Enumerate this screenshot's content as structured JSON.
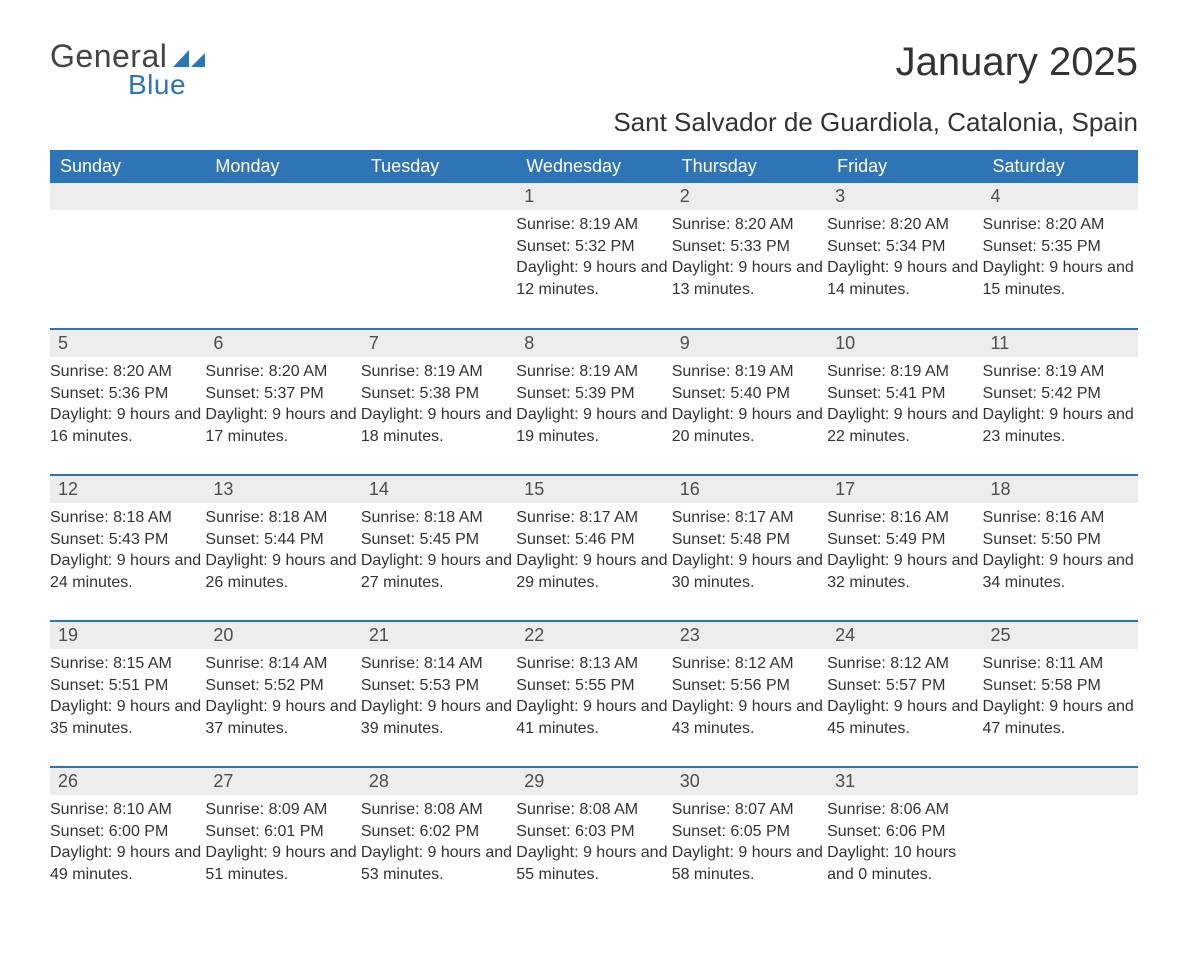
{
  "brand": {
    "general": "General",
    "blue": "Blue",
    "logo_colors": {
      "general": "#444444",
      "blue": "#2e75b6",
      "icon": "#2e75b6"
    }
  },
  "title": "January 2025",
  "subtitle": "Sant Salvador de Guardiola, Catalonia, Spain",
  "colors": {
    "header_bg": "#2f75b5",
    "header_text": "#ffffff",
    "daynum_bg": "#ededed",
    "week_divider": "#2f75b5",
    "body_text": "#333333"
  },
  "font_sizes": {
    "title": 40,
    "subtitle": 26,
    "weekday_header": 18,
    "day_number": 18,
    "day_body": 16
  },
  "weekdays": [
    "Sunday",
    "Monday",
    "Tuesday",
    "Wednesday",
    "Thursday",
    "Friday",
    "Saturday"
  ],
  "labels": {
    "sunrise": "Sunrise: ",
    "sunset": "Sunset: ",
    "daylight_prefix": "Daylight: ",
    "and": " and ",
    "minutes_suffix": " minutes."
  },
  "weeks": [
    [
      null,
      null,
      null,
      {
        "n": "1",
        "sunrise": "8:19 AM",
        "sunset": "5:32 PM",
        "dl_h": "9 hours",
        "dl_m": "12"
      },
      {
        "n": "2",
        "sunrise": "8:20 AM",
        "sunset": "5:33 PM",
        "dl_h": "9 hours",
        "dl_m": "13"
      },
      {
        "n": "3",
        "sunrise": "8:20 AM",
        "sunset": "5:34 PM",
        "dl_h": "9 hours",
        "dl_m": "14"
      },
      {
        "n": "4",
        "sunrise": "8:20 AM",
        "sunset": "5:35 PM",
        "dl_h": "9 hours",
        "dl_m": "15"
      }
    ],
    [
      {
        "n": "5",
        "sunrise": "8:20 AM",
        "sunset": "5:36 PM",
        "dl_h": "9 hours",
        "dl_m": "16"
      },
      {
        "n": "6",
        "sunrise": "8:20 AM",
        "sunset": "5:37 PM",
        "dl_h": "9 hours",
        "dl_m": "17"
      },
      {
        "n": "7",
        "sunrise": "8:19 AM",
        "sunset": "5:38 PM",
        "dl_h": "9 hours",
        "dl_m": "18"
      },
      {
        "n": "8",
        "sunrise": "8:19 AM",
        "sunset": "5:39 PM",
        "dl_h": "9 hours",
        "dl_m": "19"
      },
      {
        "n": "9",
        "sunrise": "8:19 AM",
        "sunset": "5:40 PM",
        "dl_h": "9 hours",
        "dl_m": "20"
      },
      {
        "n": "10",
        "sunrise": "8:19 AM",
        "sunset": "5:41 PM",
        "dl_h": "9 hours",
        "dl_m": "22"
      },
      {
        "n": "11",
        "sunrise": "8:19 AM",
        "sunset": "5:42 PM",
        "dl_h": "9 hours",
        "dl_m": "23"
      }
    ],
    [
      {
        "n": "12",
        "sunrise": "8:18 AM",
        "sunset": "5:43 PM",
        "dl_h": "9 hours",
        "dl_m": "24"
      },
      {
        "n": "13",
        "sunrise": "8:18 AM",
        "sunset": "5:44 PM",
        "dl_h": "9 hours",
        "dl_m": "26"
      },
      {
        "n": "14",
        "sunrise": "8:18 AM",
        "sunset": "5:45 PM",
        "dl_h": "9 hours",
        "dl_m": "27"
      },
      {
        "n": "15",
        "sunrise": "8:17 AM",
        "sunset": "5:46 PM",
        "dl_h": "9 hours",
        "dl_m": "29"
      },
      {
        "n": "16",
        "sunrise": "8:17 AM",
        "sunset": "5:48 PM",
        "dl_h": "9 hours",
        "dl_m": "30"
      },
      {
        "n": "17",
        "sunrise": "8:16 AM",
        "sunset": "5:49 PM",
        "dl_h": "9 hours",
        "dl_m": "32"
      },
      {
        "n": "18",
        "sunrise": "8:16 AM",
        "sunset": "5:50 PM",
        "dl_h": "9 hours",
        "dl_m": "34"
      }
    ],
    [
      {
        "n": "19",
        "sunrise": "8:15 AM",
        "sunset": "5:51 PM",
        "dl_h": "9 hours",
        "dl_m": "35"
      },
      {
        "n": "20",
        "sunrise": "8:14 AM",
        "sunset": "5:52 PM",
        "dl_h": "9 hours",
        "dl_m": "37"
      },
      {
        "n": "21",
        "sunrise": "8:14 AM",
        "sunset": "5:53 PM",
        "dl_h": "9 hours",
        "dl_m": "39"
      },
      {
        "n": "22",
        "sunrise": "8:13 AM",
        "sunset": "5:55 PM",
        "dl_h": "9 hours",
        "dl_m": "41"
      },
      {
        "n": "23",
        "sunrise": "8:12 AM",
        "sunset": "5:56 PM",
        "dl_h": "9 hours",
        "dl_m": "43"
      },
      {
        "n": "24",
        "sunrise": "8:12 AM",
        "sunset": "5:57 PM",
        "dl_h": "9 hours",
        "dl_m": "45"
      },
      {
        "n": "25",
        "sunrise": "8:11 AM",
        "sunset": "5:58 PM",
        "dl_h": "9 hours",
        "dl_m": "47"
      }
    ],
    [
      {
        "n": "26",
        "sunrise": "8:10 AM",
        "sunset": "6:00 PM",
        "dl_h": "9 hours",
        "dl_m": "49"
      },
      {
        "n": "27",
        "sunrise": "8:09 AM",
        "sunset": "6:01 PM",
        "dl_h": "9 hours",
        "dl_m": "51"
      },
      {
        "n": "28",
        "sunrise": "8:08 AM",
        "sunset": "6:02 PM",
        "dl_h": "9 hours",
        "dl_m": "53"
      },
      {
        "n": "29",
        "sunrise": "8:08 AM",
        "sunset": "6:03 PM",
        "dl_h": "9 hours",
        "dl_m": "55"
      },
      {
        "n": "30",
        "sunrise": "8:07 AM",
        "sunset": "6:05 PM",
        "dl_h": "9 hours",
        "dl_m": "58"
      },
      {
        "n": "31",
        "sunrise": "8:06 AM",
        "sunset": "6:06 PM",
        "dl_h": "10 hours",
        "dl_m": "0"
      },
      null
    ]
  ]
}
